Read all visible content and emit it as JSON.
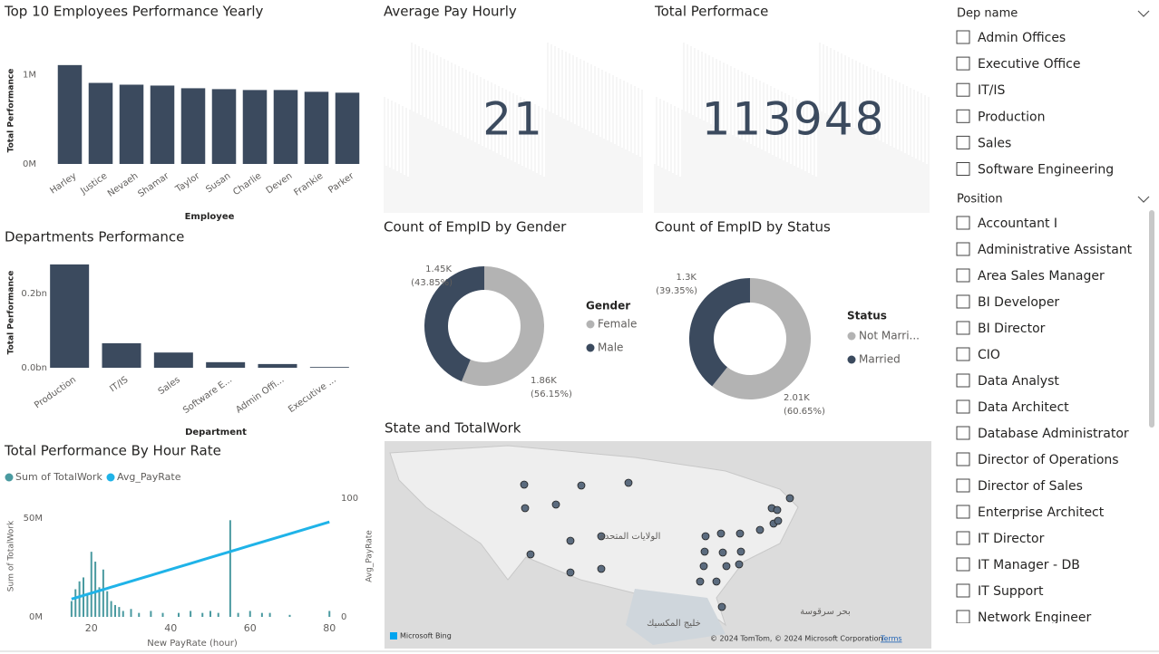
{
  "chart_data": [
    {
      "type": "bar",
      "title": "Top 10 Employees Performance Yearly",
      "x_label": "Employee",
      "y_label": "Total Performance",
      "categories": [
        "Harley",
        "Justice",
        "Nevaeh",
        "Shamar",
        "Taylor",
        "Susan",
        "Charlie",
        "Deven",
        "Frankie",
        "Parker"
      ],
      "values": [
        1110000,
        910000,
        890000,
        880000,
        850000,
        840000,
        830000,
        830000,
        810000,
        800000
      ],
      "color": "#3b4a5e",
      "ylim": [
        0,
        1200000
      ],
      "yticks": [
        {
          "value": 0,
          "label": "0M"
        },
        {
          "value": 1000000,
          "label": "1M"
        }
      ]
    },
    {
      "type": "bar",
      "title": "Departments Performance",
      "x_label": "Department",
      "y_label": "Total Performance",
      "categories": [
        "Production",
        "IT/IS",
        "Sales",
        "Software E...",
        "Admin Offi...",
        "Executive ..."
      ],
      "values": [
        278000000,
        66000000,
        41000000,
        15000000,
        10000000,
        2000000
      ],
      "color": "#3b4a5e",
      "ylim": [
        0,
        290000000
      ],
      "yticks": [
        {
          "value": 0,
          "label": "0.0bn"
        },
        {
          "value": 200000000,
          "label": "0.2bn"
        }
      ]
    },
    {
      "type": "combo",
      "title": "Total Performance By Hour Rate",
      "x_label": "New PayRate (hour)",
      "y_label": "Sum of TotalWork",
      "y2_label": "Avg_PayRate",
      "x": [
        15,
        16,
        17,
        18,
        19,
        20,
        21,
        22,
        23,
        24,
        25,
        26,
        27,
        28,
        30,
        32,
        35,
        38,
        42,
        45,
        48,
        50,
        52,
        55,
        57,
        60,
        63,
        65,
        70,
        80
      ],
      "series": [
        {
          "name": "Sum of TotalWork",
          "color": "#4a9aa0",
          "kind": "bar",
          "values": [
            8000000,
            14000000,
            18000000,
            20000000,
            12000000,
            33000000,
            28000000,
            15000000,
            24000000,
            13000000,
            8000000,
            6000000,
            5000000,
            3000000,
            4000000,
            2000000,
            3000000,
            2000000,
            2000000,
            3000000,
            2000000,
            3000000,
            2000000,
            49000000,
            2000000,
            3000000,
            2000000,
            2000000,
            1000000,
            3000000
          ]
        },
        {
          "name": "Avg_PayRate",
          "color": "#1fb3e8",
          "kind": "line",
          "axis": "y2",
          "values": [
            15,
            16,
            17,
            18,
            19,
            20,
            21,
            22,
            23,
            24,
            25,
            26,
            27,
            28,
            30,
            32,
            35,
            38,
            42,
            45,
            48,
            50,
            52,
            55,
            57,
            60,
            63,
            65,
            70,
            80
          ]
        }
      ],
      "xlim": [
        10,
        82
      ],
      "xticks": [
        20,
        40,
        60,
        80
      ],
      "ylim": [
        0,
        62000000
      ],
      "yticks": [
        {
          "value": 0,
          "label": "0M"
        },
        {
          "value": 50000000,
          "label": "50M"
        }
      ],
      "y2lim": [
        0,
        103
      ],
      "y2ticks": [
        0,
        100
      ]
    },
    {
      "type": "donut",
      "title": "Count of EmpID by Gender",
      "legend_title": "Gender",
      "categories": [
        "Female",
        "Male"
      ],
      "values": [
        1860,
        1450
      ],
      "value_labels": [
        "1.86K",
        "1.45K"
      ],
      "percents": [
        56.15,
        43.85
      ],
      "percent_labels": [
        "(56.15%)",
        "(43.85%)"
      ],
      "colors": [
        "#b3b3b3",
        "#3b4a5e"
      ]
    },
    {
      "type": "donut",
      "title": "Count of EmpID by Status",
      "legend_title": "Status",
      "categories": [
        "Not Marri...",
        "Married"
      ],
      "values": [
        2010,
        1300
      ],
      "value_labels": [
        "2.01K",
        "1.3K"
      ],
      "percents": [
        60.65,
        39.35
      ],
      "percent_labels": [
        "(60.65%)",
        "(39.35%)"
      ],
      "colors": [
        "#b3b3b3",
        "#3b4a5e"
      ]
    },
    {
      "type": "map",
      "title": "State and TotalWork",
      "labels": [
        "الولايات المتحدة",
        "خليج المكسيك",
        "بحر سرقوسة"
      ],
      "attribution": "© 2024 TomTom, © 2024 Microsoft Corporation",
      "terms": "Terms",
      "provider": "Microsoft Bing"
    }
  ],
  "cards": [
    {
      "title": "Average Pay Hourly",
      "value": 21
    },
    {
      "title": "Total Performace",
      "value": 113948
    }
  ],
  "slicers": [
    {
      "title": "Dep name",
      "items": [
        "Admin Offices",
        "Executive Office",
        "IT/IS",
        "Production",
        "Sales",
        "Software Engineering"
      ]
    },
    {
      "title": "Position",
      "items": [
        "Accountant I",
        "Administrative Assistant",
        "Area Sales Manager",
        "BI Developer",
        "BI Director",
        "CIO",
        "Data Analyst",
        "Data Architect",
        "Database Administrator",
        "Director of Operations",
        "Director of Sales",
        "Enterprise Architect",
        "IT Director",
        "IT Manager - DB",
        "IT Support",
        "Network Engineer"
      ]
    }
  ]
}
